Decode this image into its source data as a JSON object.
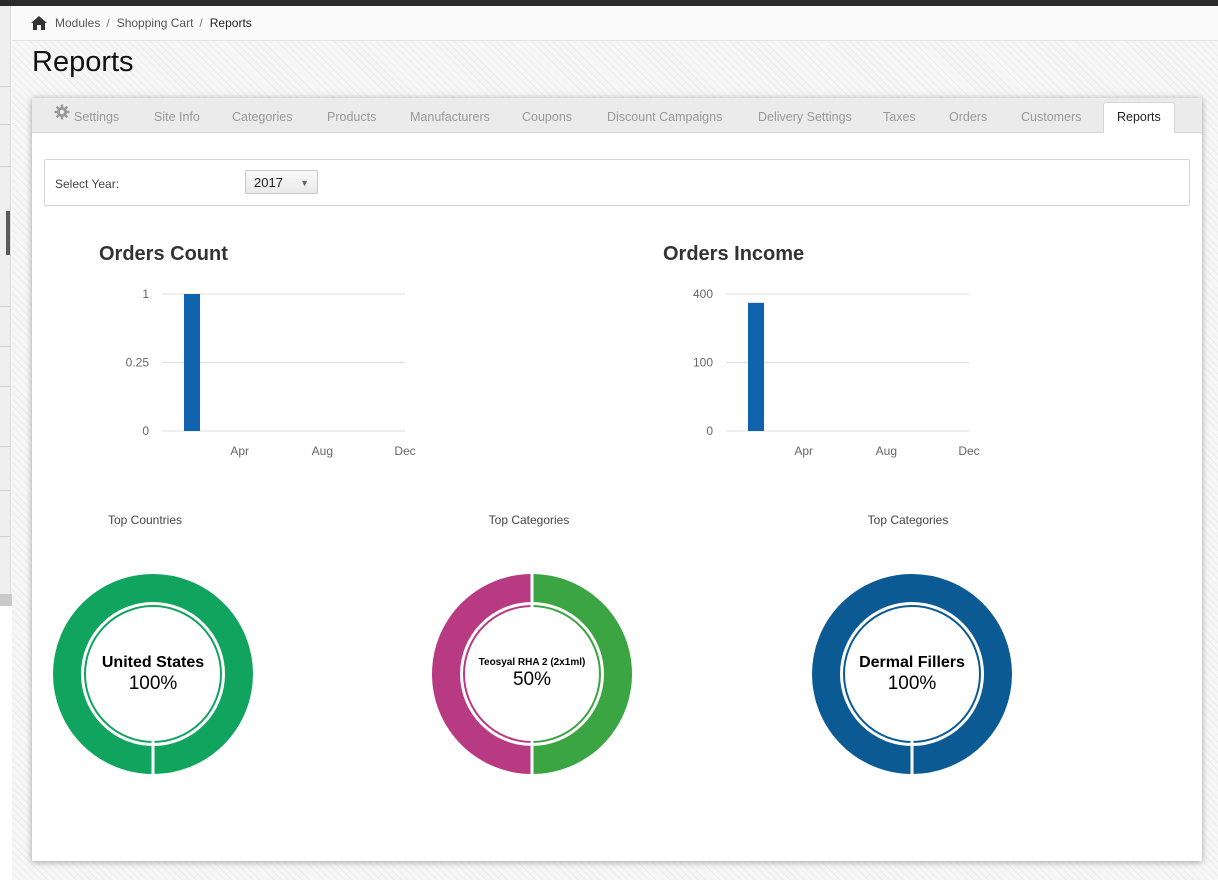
{
  "breadcrumb": {
    "items": [
      "Modules",
      "Shopping Cart",
      "Reports"
    ],
    "separator": "/"
  },
  "page_title": "Reports",
  "tabs": [
    {
      "label": "Settings",
      "icon": "gear-icon"
    },
    {
      "label": "Site Info"
    },
    {
      "label": "Categories"
    },
    {
      "label": "Products"
    },
    {
      "label": "Manufacturers"
    },
    {
      "label": "Coupons"
    },
    {
      "label": "Discount Campaigns"
    },
    {
      "label": "Delivery Settings"
    },
    {
      "label": "Taxes"
    },
    {
      "label": "Orders"
    },
    {
      "label": "Customers"
    },
    {
      "label": "Reports",
      "active": true
    }
  ],
  "filter": {
    "label": "Select Year:",
    "year": "2017"
  },
  "colors": {
    "bar": "#0f62ac",
    "green": "#10a45f",
    "green2": "#3aa542",
    "magenta": "#b83a82",
    "blue": "#0c5a94"
  },
  "chart_data": [
    {
      "type": "bar",
      "title": "Orders Count",
      "yticks": [
        "1",
        "0.25",
        "0"
      ],
      "xticks": [
        "Apr",
        "Aug",
        "Dec"
      ],
      "series": [
        {
          "points": [
            {
              "x": "Feb",
              "y": 1
            }
          ]
        }
      ]
    },
    {
      "type": "bar",
      "title": "Orders Income",
      "yticks": [
        "400",
        "100",
        "0"
      ],
      "xticks": [
        "Apr",
        "Aug",
        "Dec"
      ],
      "series": [
        {
          "points": [
            {
              "x": "Feb",
              "y": 350
            }
          ]
        }
      ]
    },
    {
      "type": "pie",
      "title": "Top Countries",
      "slices": [
        {
          "label": "United States",
          "percent": 100,
          "color": "#10a45f"
        }
      ],
      "center_label": "United States",
      "center_value": "100%"
    },
    {
      "type": "pie",
      "title": "Top Categories",
      "slices": [
        {
          "label": "Teosyal RHA 2 (2x1ml)",
          "percent": 50,
          "color": "#3aa542"
        },
        {
          "label": "",
          "percent": 50,
          "color": "#b83a82"
        }
      ],
      "center_label": "Teosyal RHA 2 (2x1ml)",
      "center_value": "50%"
    },
    {
      "type": "pie",
      "title": "Top Categories",
      "slices": [
        {
          "label": "Dermal Fillers",
          "percent": 100,
          "color": "#0c5a94"
        }
      ],
      "center_label": "Dermal Fillers",
      "center_value": "100%"
    }
  ]
}
